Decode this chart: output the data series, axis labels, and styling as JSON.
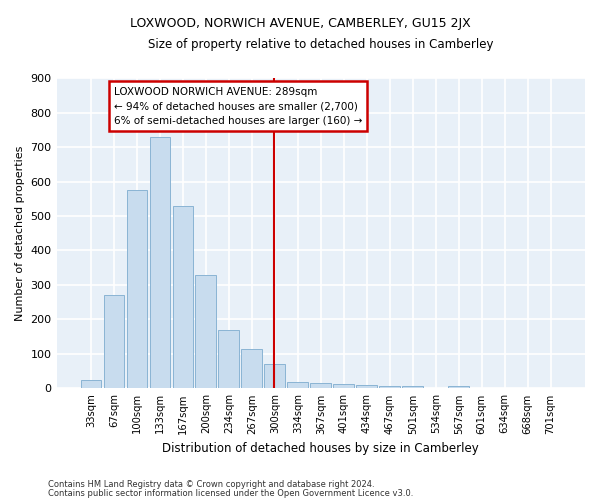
{
  "title": "LOXWOOD, NORWICH AVENUE, CAMBERLEY, GU15 2JX",
  "subtitle": "Size of property relative to detached houses in Camberley",
  "xlabel": "Distribution of detached houses by size in Camberley",
  "ylabel": "Number of detached properties",
  "categories": [
    "33sqm",
    "67sqm",
    "100sqm",
    "133sqm",
    "167sqm",
    "200sqm",
    "234sqm",
    "267sqm",
    "300sqm",
    "334sqm",
    "367sqm",
    "401sqm",
    "434sqm",
    "467sqm",
    "501sqm",
    "534sqm",
    "567sqm",
    "601sqm",
    "634sqm",
    "668sqm",
    "701sqm"
  ],
  "values": [
    25,
    270,
    575,
    730,
    530,
    330,
    170,
    115,
    70,
    20,
    15,
    13,
    10,
    8,
    7,
    0,
    8,
    0,
    0,
    0,
    0
  ],
  "bar_color": "#c8dcee",
  "bar_edge_color": "#8ab4d4",
  "fig_background_color": "#ffffff",
  "ax_background_color": "#e8f0f8",
  "grid_color": "#ffffff",
  "property_label": "LOXWOOD NORWICH AVENUE: 289sqm",
  "annotation_line1": "← 94% of detached houses are smaller (2,700)",
  "annotation_line2": "6% of semi-detached houses are larger (160) →",
  "vline_color": "#cc0000",
  "annotation_box_color": "#ffffff",
  "annotation_box_edge": "#cc0000",
  "ylim": [
    0,
    900
  ],
  "yticks": [
    0,
    100,
    200,
    300,
    400,
    500,
    600,
    700,
    800,
    900
  ],
  "vline_x_index": 7.95,
  "footer1": "Contains HM Land Registry data © Crown copyright and database right 2024.",
  "footer2": "Contains public sector information licensed under the Open Government Licence v3.0."
}
